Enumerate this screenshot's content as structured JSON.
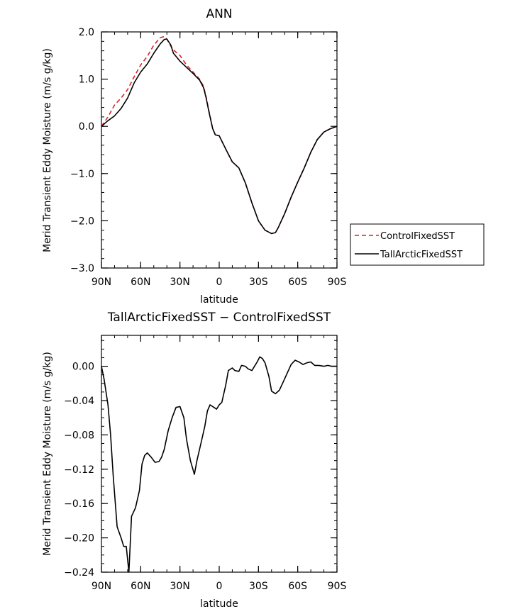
{
  "chart_data": [
    {
      "type": "line",
      "title": "ANN",
      "xlabel": "latitude",
      "ylabel": "Merid Transient Eddy Moisture (m/s g/kg)",
      "xlim": [
        90,
        -90
      ],
      "ylim": [
        -3.0,
        2.0
      ],
      "x_ticks": [
        90,
        60,
        30,
        0,
        -30,
        -60,
        -90
      ],
      "x_tick_labels": [
        "90N",
        "60N",
        "30N",
        "0",
        "30S",
        "60S",
        "90S"
      ],
      "y_ticks": [
        2.0,
        1.0,
        0.0,
        -1.0,
        -2.0,
        -3.0
      ],
      "y_tick_labels": [
        "2.0",
        "1.0",
        "0.0",
        "−1.0",
        "−2.0",
        "−3.0"
      ],
      "legend": [
        "ControlFixedSST",
        "TallArcticFixedSST"
      ],
      "legend_position": "right",
      "series": [
        {
          "name": "ControlFixedSST",
          "color": "#dd2222",
          "dash": "dashed",
          "x": [
            90,
            85,
            80,
            75,
            70,
            65,
            60,
            55,
            50,
            45,
            42,
            40,
            37,
            35,
            30,
            25,
            20,
            15,
            12,
            10,
            8,
            5,
            3,
            0,
            -5,
            -10,
            -15,
            -20,
            -25,
            -30,
            -35,
            -40,
            -43,
            -45,
            -50,
            -55,
            -60,
            -65,
            -70,
            -75,
            -80,
            -85,
            -90
          ],
          "values": [
            0.0,
            0.2,
            0.45,
            0.6,
            0.78,
            1.05,
            1.3,
            1.48,
            1.72,
            1.88,
            1.9,
            1.85,
            1.7,
            1.62,
            1.5,
            1.3,
            1.15,
            1.0,
            0.85,
            0.62,
            0.35,
            -0.05,
            -0.18,
            -0.2,
            -0.48,
            -0.75,
            -0.88,
            -1.2,
            -1.62,
            -2.0,
            -2.2,
            -2.27,
            -2.25,
            -2.15,
            -1.85,
            -1.5,
            -1.18,
            -0.88,
            -0.55,
            -0.28,
            -0.12,
            -0.05,
            0.0
          ]
        },
        {
          "name": "TallArcticFixedSST",
          "color": "#000000",
          "dash": "solid",
          "x": [
            90,
            85,
            80,
            75,
            70,
            65,
            60,
            55,
            50,
            45,
            42,
            40,
            37,
            35,
            30,
            25,
            20,
            15,
            12,
            10,
            8,
            5,
            3,
            0,
            -5,
            -10,
            -15,
            -20,
            -25,
            -30,
            -35,
            -40,
            -43,
            -45,
            -50,
            -55,
            -60,
            -65,
            -70,
            -75,
            -80,
            -85,
            -90
          ],
          "values": [
            0.0,
            0.12,
            0.22,
            0.38,
            0.6,
            0.92,
            1.15,
            1.32,
            1.55,
            1.75,
            1.84,
            1.85,
            1.72,
            1.55,
            1.38,
            1.25,
            1.12,
            0.98,
            0.82,
            0.6,
            0.33,
            -0.05,
            -0.18,
            -0.2,
            -0.48,
            -0.75,
            -0.88,
            -1.2,
            -1.62,
            -2.0,
            -2.2,
            -2.27,
            -2.25,
            -2.15,
            -1.85,
            -1.5,
            -1.18,
            -0.88,
            -0.55,
            -0.28,
            -0.12,
            -0.05,
            0.0
          ]
        }
      ]
    },
    {
      "type": "line",
      "title": "TallArcticFixedSST − ControlFixedSST",
      "xlabel": "latitude",
      "ylabel": "Merid Transient Eddy Moisture (m/s g/kg)",
      "xlim": [
        90,
        -90
      ],
      "ylim": [
        -0.24,
        0.036
      ],
      "x_ticks": [
        90,
        60,
        30,
        0,
        -30,
        -60,
        -90
      ],
      "x_tick_labels": [
        "90N",
        "60N",
        "30N",
        "0",
        "30S",
        "60S",
        "90S"
      ],
      "y_ticks": [
        0.0,
        -0.04,
        -0.08,
        -0.12,
        -0.16,
        -0.2,
        -0.24
      ],
      "y_tick_labels": [
        "0.00",
        "−0.04",
        "−0.08",
        "−0.12",
        "−0.16",
        "−0.20",
        "−0.24"
      ],
      "series": [
        {
          "name": "TallArcticFixedSST − ControlFixedSST",
          "color": "#000000",
          "dash": "solid",
          "x": [
            90,
            88,
            85,
            83,
            81,
            78,
            75,
            73,
            71,
            69,
            67,
            64,
            61,
            59,
            57,
            55,
            52,
            49,
            46,
            44,
            42,
            39,
            36,
            33,
            30,
            27,
            25,
            22,
            19,
            17,
            14,
            11,
            9,
            7,
            5,
            2,
            0,
            -2,
            -5,
            -7,
            -10,
            -12,
            -15,
            -17,
            -20,
            -22,
            -25,
            -27,
            -29,
            -31,
            -33,
            -35,
            -38,
            -40,
            -43,
            -46,
            -49,
            -52,
            -55,
            -58,
            -61,
            -64,
            -67,
            -70,
            -73,
            -76,
            -80,
            -83,
            -86,
            -90
          ],
          "values": [
            0.0,
            -0.015,
            -0.045,
            -0.08,
            -0.128,
            -0.187,
            -0.2,
            -0.21,
            -0.21,
            -0.24,
            -0.175,
            -0.165,
            -0.145,
            -0.114,
            -0.104,
            -0.101,
            -0.106,
            -0.112,
            -0.111,
            -0.106,
            -0.097,
            -0.075,
            -0.06,
            -0.048,
            -0.047,
            -0.06,
            -0.085,
            -0.11,
            -0.126,
            -0.11,
            -0.09,
            -0.07,
            -0.052,
            -0.045,
            -0.047,
            -0.05,
            -0.045,
            -0.042,
            -0.022,
            -0.005,
            -0.002,
            -0.005,
            -0.006,
            0.001,
            0.0,
            -0.003,
            -0.005,
            0.0,
            0.005,
            0.011,
            0.009,
            0.004,
            -0.012,
            -0.029,
            -0.032,
            -0.028,
            -0.018,
            -0.008,
            0.002,
            0.007,
            0.005,
            0.002,
            0.004,
            0.005,
            0.001,
            0.001,
            0.0,
            0.001,
            0.0,
            0.0
          ]
        }
      ]
    }
  ]
}
